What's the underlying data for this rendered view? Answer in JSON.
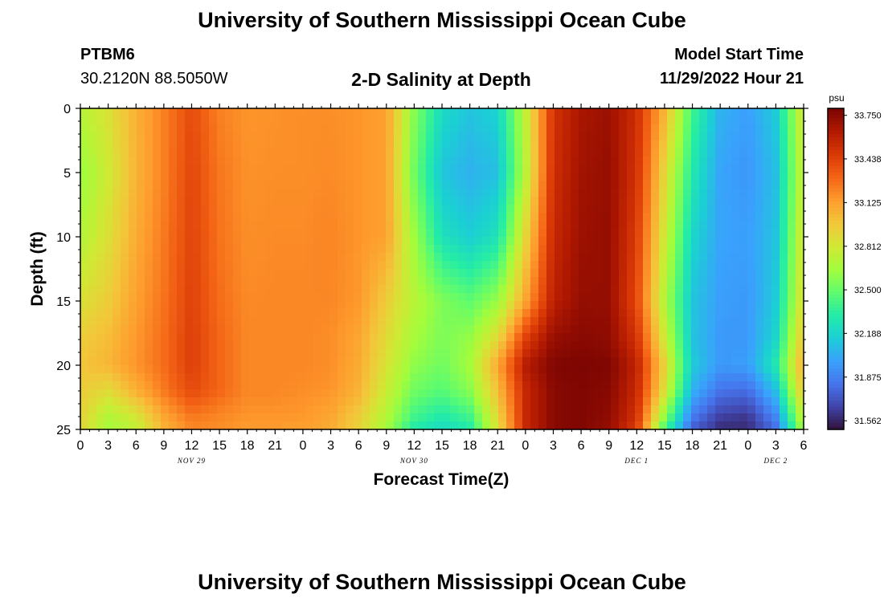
{
  "header": {
    "title": "University of Southern Mississippi Ocean Cube",
    "station_id": "PTBM6",
    "coordinates": "30.2120N  88.5050W",
    "plot_title": "2-D Salinity at Depth",
    "start_label": "Model Start Time",
    "start_value": "11/29/2022 Hour 21"
  },
  "footer": {
    "title": "University of Southern Mississippi Ocean Cube"
  },
  "chart_data": {
    "type": "heatmap",
    "title": "2-D Salinity at Depth",
    "xlabel": "Forecast Time(Z)",
    "ylabel": "Depth (ft)",
    "y_ticks": [
      0,
      5,
      10,
      15,
      20,
      25
    ],
    "ylim": [
      0,
      25
    ],
    "y_inverted": true,
    "x_ticks": [
      "0",
      "3",
      "6",
      "9",
      "12",
      "15",
      "18",
      "21",
      "0",
      "3",
      "6",
      "9",
      "12",
      "15",
      "18",
      "21",
      "0",
      "3",
      "6",
      "9",
      "12",
      "15",
      "18",
      "21",
      "0",
      "3",
      "6"
    ],
    "date_labels": [
      {
        "label": "NOV 29",
        "hour_index": 4
      },
      {
        "label": "NOV 30",
        "hour_index": 12
      },
      {
        "label": "DEC 1",
        "hour_index": 20
      },
      {
        "label": "DEC 2",
        "hour_index": 25
      }
    ],
    "colorbar": {
      "unit": "psu",
      "min": 31.5,
      "max": 33.8,
      "ticks": [
        "33.750",
        "33.438",
        "33.125",
        "32.812",
        "32.500",
        "32.188",
        "31.875",
        "31.562"
      ],
      "colors": [
        "#30123b",
        "#4145ab",
        "#4675ed",
        "#39a2fc",
        "#1bcfd4",
        "#24eca6",
        "#61fc6c",
        "#a4fc3b",
        "#d1e834",
        "#f3c63a",
        "#fe9b2d",
        "#f36315",
        "#d93806",
        "#b11901",
        "#7a0402"
      ]
    },
    "x_hours": [
      0,
      3,
      6,
      9,
      12,
      15,
      18,
      21,
      24,
      27,
      30,
      33,
      36,
      39,
      42,
      45,
      48,
      51,
      54,
      57,
      60,
      63,
      66,
      69,
      72,
      75,
      78
    ],
    "depths_ft": [
      0,
      5,
      10,
      15,
      18,
      20,
      22,
      24,
      25
    ],
    "salinity_psu": [
      [
        32.72,
        32.85,
        33.06,
        33.22,
        33.4,
        33.22,
        33.16,
        33.17,
        33.18,
        33.18,
        33.16,
        33.12,
        32.58,
        32.22,
        32.12,
        32.18,
        32.75,
        33.5,
        33.66,
        33.7,
        33.52,
        33.05,
        32.4,
        32.05,
        31.98,
        32.15,
        32.85
      ],
      [
        32.62,
        32.8,
        33.05,
        33.22,
        33.42,
        33.25,
        33.17,
        33.18,
        33.18,
        33.19,
        33.16,
        33.12,
        32.52,
        32.12,
        32.05,
        32.1,
        32.72,
        33.52,
        33.68,
        33.72,
        33.5,
        32.9,
        32.3,
        32.0,
        31.95,
        32.1,
        32.8
      ],
      [
        32.7,
        32.86,
        33.08,
        33.24,
        33.43,
        33.26,
        33.18,
        33.19,
        33.19,
        33.21,
        33.16,
        33.12,
        32.64,
        32.25,
        32.16,
        32.26,
        32.9,
        33.55,
        33.7,
        33.72,
        33.45,
        32.8,
        32.2,
        32.0,
        31.98,
        32.12,
        32.85
      ],
      [
        32.85,
        32.95,
        33.12,
        33.26,
        33.44,
        33.28,
        33.19,
        33.2,
        33.2,
        33.2,
        33.15,
        32.95,
        32.72,
        32.56,
        32.48,
        32.62,
        33.1,
        33.6,
        33.72,
        33.72,
        33.4,
        32.7,
        32.12,
        31.98,
        31.96,
        32.15,
        32.9
      ],
      [
        32.95,
        33.02,
        33.15,
        33.28,
        33.45,
        33.3,
        33.2,
        33.2,
        33.2,
        33.18,
        33.1,
        32.88,
        32.66,
        32.55,
        32.62,
        32.9,
        33.45,
        33.72,
        33.76,
        33.74,
        33.5,
        32.8,
        32.12,
        31.96,
        31.96,
        32.2,
        33.0
      ],
      [
        32.98,
        33.04,
        33.16,
        33.28,
        33.45,
        33.3,
        33.2,
        33.2,
        33.2,
        33.18,
        33.08,
        32.84,
        32.6,
        32.52,
        32.66,
        33.1,
        33.62,
        33.78,
        33.79,
        33.78,
        33.58,
        32.92,
        32.15,
        31.96,
        31.98,
        32.3,
        33.1
      ],
      [
        32.95,
        32.88,
        33.06,
        33.24,
        33.4,
        33.3,
        33.2,
        33.2,
        33.18,
        33.16,
        33.05,
        32.78,
        32.52,
        32.45,
        32.58,
        33.0,
        33.55,
        33.76,
        33.78,
        33.76,
        33.55,
        32.85,
        32.05,
        31.82,
        31.8,
        32.1,
        33.0
      ],
      [
        32.92,
        32.7,
        32.82,
        33.1,
        33.25,
        33.2,
        33.16,
        33.16,
        33.15,
        33.1,
        32.95,
        32.7,
        32.4,
        32.3,
        32.4,
        32.9,
        33.55,
        33.76,
        33.78,
        33.74,
        33.5,
        32.6,
        31.85,
        31.65,
        31.62,
        31.9,
        32.8
      ],
      [
        32.9,
        32.65,
        32.75,
        33.05,
        33.2,
        33.18,
        33.14,
        33.14,
        33.12,
        33.08,
        32.92,
        32.65,
        32.3,
        32.2,
        32.3,
        32.85,
        33.55,
        33.76,
        33.78,
        33.72,
        33.45,
        32.4,
        31.75,
        31.58,
        31.58,
        31.8,
        32.7
      ]
    ]
  }
}
